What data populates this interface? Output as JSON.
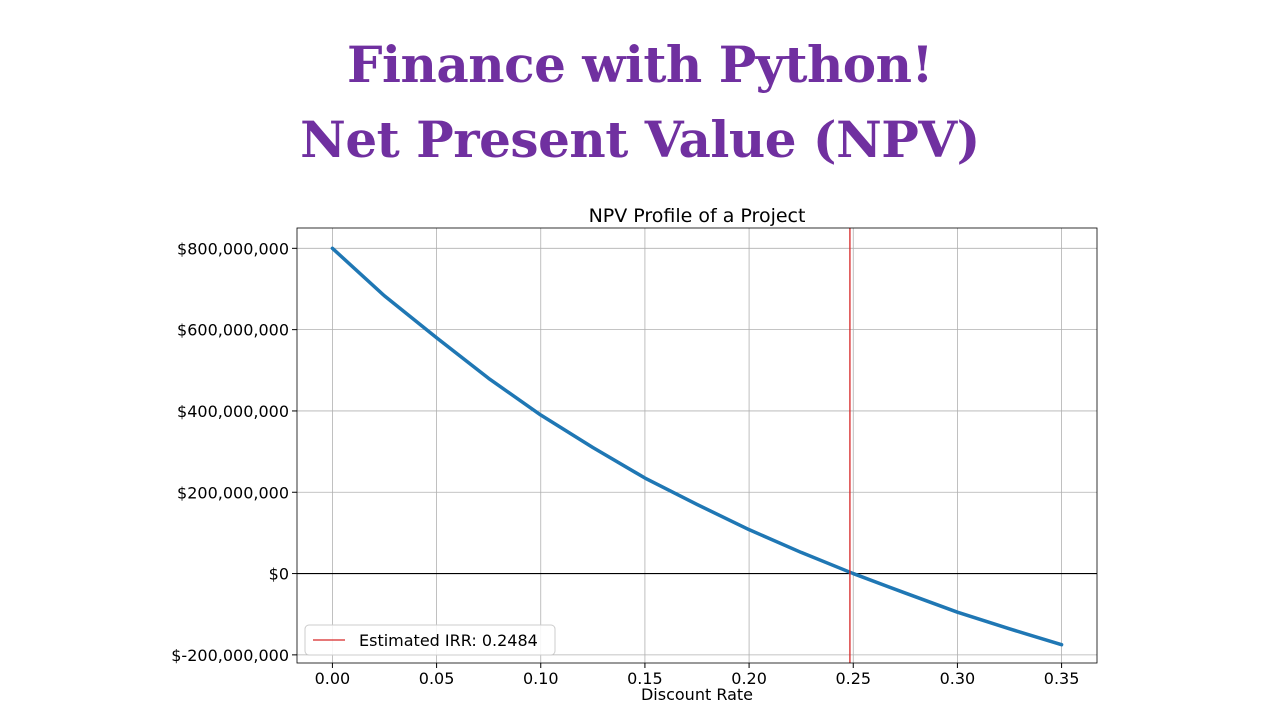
{
  "header": {
    "line1": "Finance with Python!",
    "line2": "Net Present Value (NPV)"
  },
  "chart_data": {
    "type": "line",
    "title": "NPV Profile of a Project",
    "xlabel": "Discount Rate",
    "ylabel": "",
    "xlim": [
      -0.017,
      0.367
    ],
    "ylim": [
      -220000000,
      850000000
    ],
    "x_ticks": [
      0.0,
      0.05,
      0.1,
      0.15,
      0.2,
      0.25,
      0.3,
      0.35
    ],
    "x_tick_labels": [
      "0.00",
      "0.05",
      "0.10",
      "0.15",
      "0.20",
      "0.25",
      "0.30",
      "0.35"
    ],
    "y_ticks": [
      -200000000,
      0,
      200000000,
      400000000,
      600000000,
      800000000
    ],
    "y_tick_labels": [
      "$-200,000,000",
      "$0",
      "$200,000,000",
      "$400,000,000",
      "$600,000,000",
      "$800,000,000"
    ],
    "grid": true,
    "legend_position": "lower-left",
    "zero_line": 0,
    "series": [
      {
        "color": "#1f77b4",
        "x": [
          0.0,
          0.025,
          0.05,
          0.075,
          0.1,
          0.125,
          0.15,
          0.175,
          0.2,
          0.225,
          0.25,
          0.275,
          0.3,
          0.325,
          0.35
        ],
        "y": [
          800000000,
          683000000,
          580000000,
          480000000,
          390000000,
          310000000,
          235000000,
          170000000,
          108000000,
          52000000,
          0,
          -48000000,
          -95000000,
          -136000000,
          -175000000
        ]
      }
    ],
    "irr_line": {
      "x": 0.2484,
      "color": "#d62728",
      "label": "Estimated IRR: 0.2484"
    }
  }
}
